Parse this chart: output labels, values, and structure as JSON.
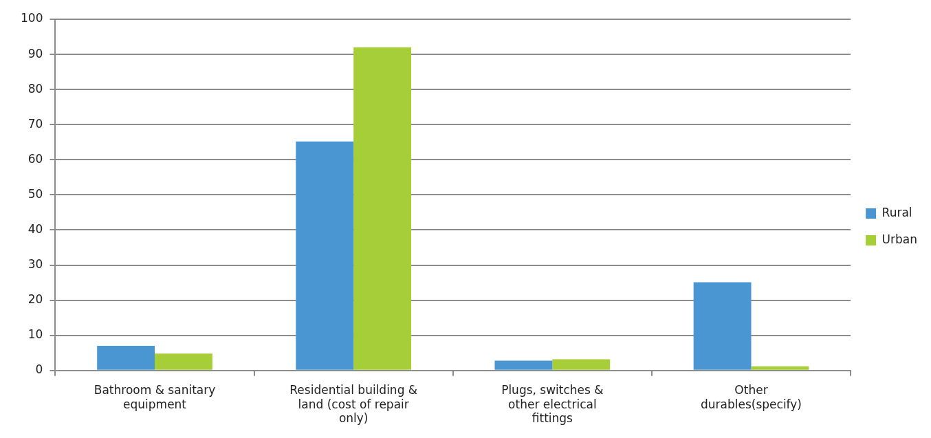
{
  "chart_data": {
    "type": "bar",
    "categories": [
      "Bathroom & sanitary equipment",
      "Residential building & land (cost of repair only)",
      "Plugs, switches & other electrical fittings",
      "Other durables(specify)"
    ],
    "series": [
      {
        "name": "Rural",
        "color": "#4a96d2",
        "values": [
          7.0,
          65.2,
          2.8,
          25.1
        ]
      },
      {
        "name": "Urban",
        "color": "#a6ce39",
        "values": [
          4.8,
          92,
          3.2,
          1.2
        ]
      }
    ],
    "ylim": [
      0,
      100
    ],
    "yticks": [
      0,
      10,
      20,
      30,
      40,
      50,
      60,
      70,
      80,
      90,
      100
    ],
    "grid": "y",
    "legend": "right"
  }
}
